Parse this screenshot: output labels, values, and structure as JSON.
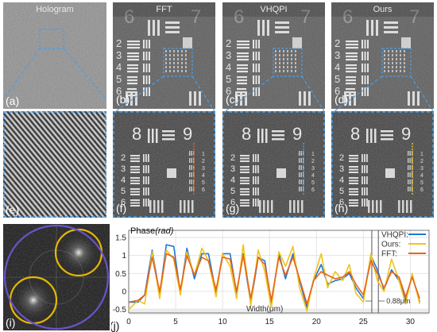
{
  "panels": {
    "a": {
      "title": "Hologram",
      "label": "(a)"
    },
    "b": {
      "title": "FFT",
      "label": "(b)"
    },
    "c": {
      "title": "VHQPI",
      "label": "(c)"
    },
    "d": {
      "title": "Ours",
      "label": "(d)"
    },
    "e": {
      "label": "(e)"
    },
    "f": {
      "label": "(f)"
    },
    "g": {
      "label": "(g)"
    },
    "h": {
      "label": "(h)"
    },
    "i": {
      "label": "(i)"
    },
    "j": {
      "label": "(j)"
    }
  },
  "target_numbers": {
    "top_left": "6",
    "top_right": "7",
    "mid_left": "8",
    "mid_right": "9"
  },
  "group_numbers": [
    "2",
    "3",
    "4",
    "5",
    "6"
  ],
  "zoom_group_numbers": [
    "2",
    "3",
    "4",
    "5",
    "6"
  ],
  "colors": {
    "vhqpi": "#1f77d4",
    "ours": "#f0c419",
    "fft": "#e8641b",
    "highlight": "#4a9ee8",
    "circle_yellow": "#e6b800",
    "circle_purple": "#6a52c9"
  },
  "chart_data": {
    "type": "line",
    "title": "",
    "xlabel": "Width(μm)",
    "ylabel": "Phase(rad)",
    "xlim": [
      0,
      32
    ],
    "ylim": [
      -0.6,
      1.7
    ],
    "xticks": [
      0,
      5,
      10,
      15,
      20,
      25,
      30
    ],
    "yticks": [
      -0.5,
      0,
      0.5,
      1,
      1.5
    ],
    "scale_annotation": "0.88μm",
    "marker_x": [
      25.9,
      26.6
    ],
    "legend_position": "top-right",
    "series": [
      {
        "name": "VHQPI:",
        "color": "#1f77d4",
        "x": [
          0,
          1,
          1.7,
          2.5,
          3.3,
          4,
          4.8,
          5.5,
          6.2,
          7,
          7.8,
          8.5,
          9.3,
          10,
          10.8,
          11.5,
          12.2,
          13,
          13.8,
          14.5,
          15.2,
          16,
          16.7,
          17.5,
          18.2,
          19,
          19.7,
          20.5,
          21.2,
          22,
          22.8,
          23.5,
          24.2,
          25,
          25.8,
          26.5,
          27.2,
          28,
          28.8,
          29.5,
          30.2,
          31
        ],
        "y": [
          -0.3,
          -0.3,
          -0.1,
          1.15,
          -0.1,
          1.3,
          1.25,
          -0.05,
          1.2,
          0.35,
          1.05,
          1.05,
          -0.05,
          1.05,
          1.05,
          -0.05,
          1.05,
          -0.35,
          0.95,
          0.85,
          -0.35,
          1.05,
          0.35,
          1.05,
          0.3,
          -0.45,
          0.3,
          0.75,
          0.2,
          0.3,
          0.35,
          0.5,
          0.1,
          -0.2,
          1.0,
          0.6,
          0.05,
          0.6,
          0.3,
          -0.25,
          0.45,
          -0.3
        ]
      },
      {
        "name": "Ours:",
        "color": "#f0c419",
        "x": [
          0,
          1,
          1.7,
          2.5,
          3.3,
          4,
          4.8,
          5.5,
          6.2,
          7,
          7.8,
          8.5,
          9.3,
          10,
          10.8,
          11.5,
          12.2,
          13,
          13.8,
          14.5,
          15.2,
          16,
          16.7,
          17.5,
          18.2,
          19,
          19.7,
          20.5,
          21.2,
          22,
          22.8,
          23.5,
          24.2,
          25,
          25.8,
          26.5,
          27.2,
          28,
          28.8,
          29.5,
          30.2,
          31
        ],
        "y": [
          -0.5,
          -0.25,
          -0.35,
          1.1,
          -0.2,
          1.15,
          0.9,
          -0.1,
          1.1,
          0.45,
          1.2,
          0.85,
          -0.15,
          1.05,
          0.7,
          -0.2,
          1.3,
          -0.4,
          1.15,
          0.55,
          -0.45,
          1.1,
          0.7,
          1.25,
          0.1,
          -0.55,
          0.35,
          1.05,
          0.1,
          0.55,
          0.3,
          0.75,
          -0.05,
          -0.3,
          1.05,
          0.3,
          0.0,
          0.9,
          0.3,
          -0.35,
          0.5,
          -0.35
        ]
      },
      {
        "name": "FFT:",
        "color": "#e8641b",
        "x": [
          0,
          1,
          1.7,
          2.5,
          3.3,
          4,
          4.8,
          5.5,
          6.2,
          7,
          7.8,
          8.5,
          9.3,
          10,
          10.8,
          11.5,
          12.2,
          13,
          13.8,
          14.5,
          15.2,
          16,
          16.7,
          17.5,
          18.2,
          19,
          19.7,
          20.5,
          21.2,
          22,
          22.8,
          23.5,
          24.2,
          25,
          25.8,
          26.5,
          27.2,
          28,
          28.8,
          29.5,
          30.2,
          31
        ],
        "y": [
          -0.3,
          -0.25,
          -0.1,
          0.95,
          0.0,
          1.05,
          0.95,
          0.05,
          1.0,
          0.45,
          0.95,
          0.85,
          0.05,
          0.95,
          0.9,
          0.0,
          1.0,
          -0.2,
          0.95,
          0.75,
          -0.25,
          0.95,
          0.45,
          0.95,
          0.35,
          -0.35,
          0.3,
          0.55,
          0.45,
          0.35,
          0.4,
          0.55,
          0.2,
          -0.1,
          0.85,
          0.5,
          0.1,
          0.55,
          0.4,
          -0.15,
          0.4,
          -0.2
        ]
      }
    ]
  }
}
